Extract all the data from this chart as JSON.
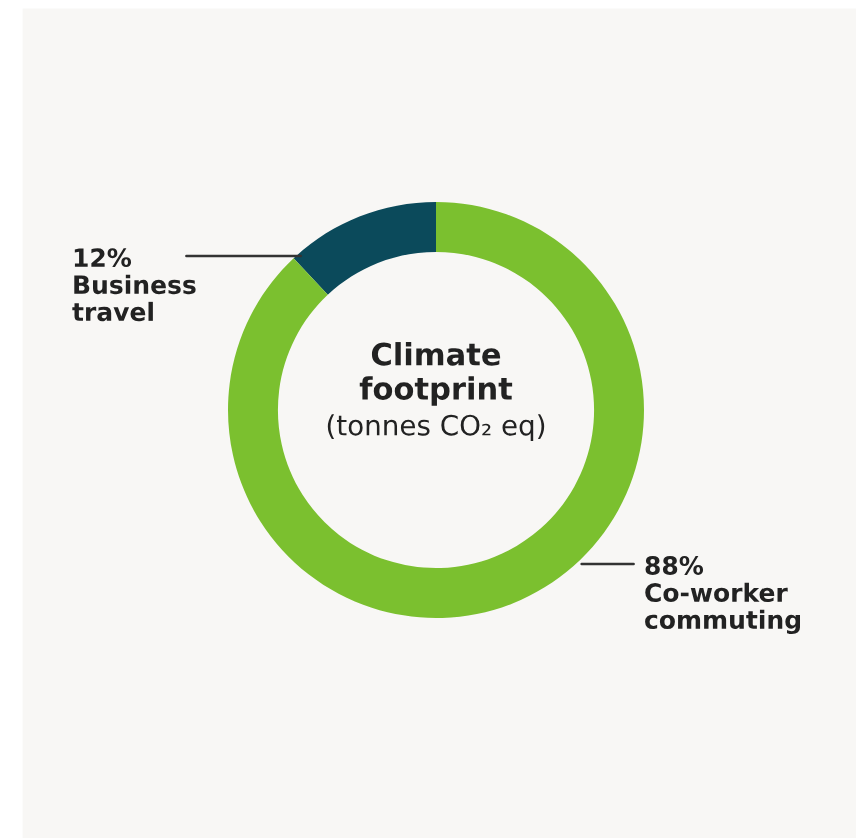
{
  "chart_data": {
    "type": "donut",
    "title": "Climate\nfootprint",
    "subtitle": "(tonnes CO₂ eq)",
    "categories": [
      "Business travel",
      "Co-worker commuting"
    ],
    "values": [
      12,
      88
    ],
    "colors": [
      "#0b4a5b",
      "#7bc02f"
    ],
    "value_labels": [
      "12%",
      "88%"
    ]
  }
}
